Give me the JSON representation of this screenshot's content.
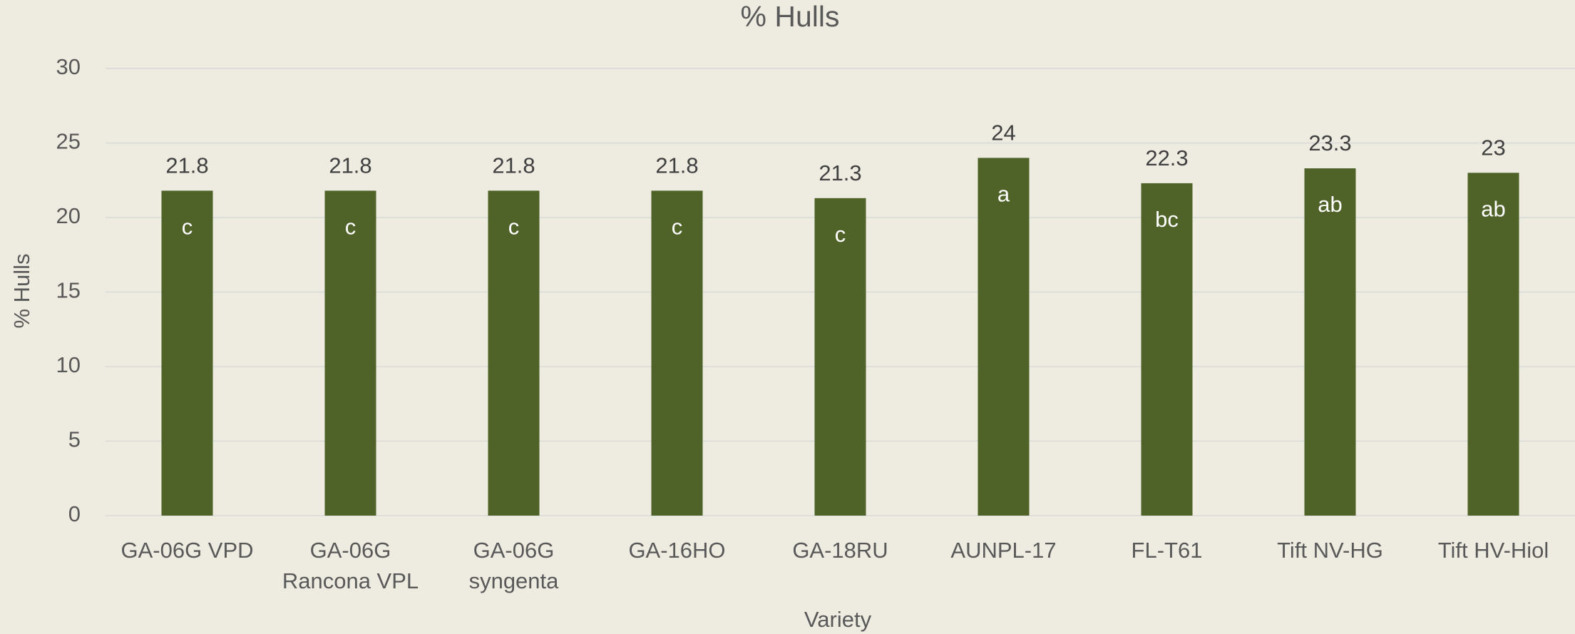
{
  "chart_data": {
    "type": "bar",
    "title": "% Hulls",
    "x_label": "Variety",
    "y_label": "% Hulls",
    "categories": [
      "GA-06G VPD",
      "GA-06G Rancona VPL",
      "GA-06G syngenta",
      "GA-16HO",
      "GA-18RU",
      "AUNPL-17",
      "FL-T61",
      "Tift NV-HG",
      "Tift HV-Hiol"
    ],
    "values": [
      21.8,
      21.8,
      21.8,
      21.8,
      21.3,
      24,
      22.3,
      23.3,
      23
    ],
    "letters": [
      "c",
      "c",
      "c",
      "c",
      "c",
      "a",
      "bc",
      "ab",
      "ab"
    ],
    "color": "#4f6228",
    "ylim": [
      0,
      30
    ],
    "yticks": [
      0,
      5,
      10,
      15,
      20,
      25,
      30
    ],
    "grid": true
  }
}
